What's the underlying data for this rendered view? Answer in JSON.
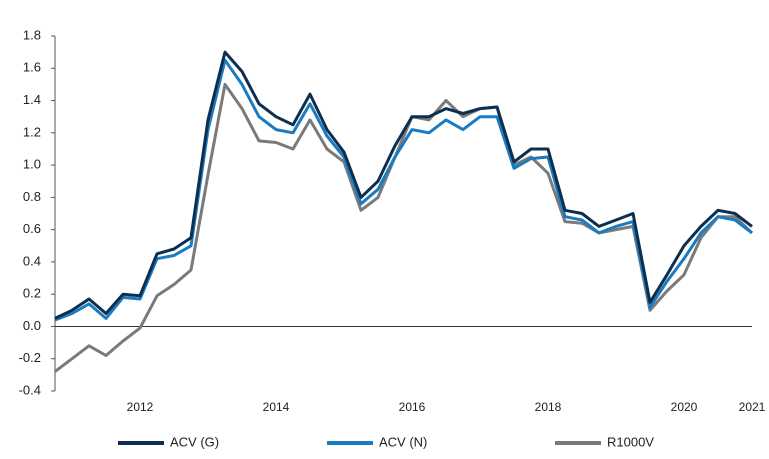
{
  "chart_data": {
    "type": "line",
    "x": [
      2010.75,
      2011,
      2011.25,
      2011.5,
      2011.75,
      2012,
      2012.25,
      2012.5,
      2012.75,
      2013,
      2013.25,
      2013.5,
      2013.75,
      2014,
      2014.25,
      2014.5,
      2014.75,
      2015,
      2015.25,
      2015.5,
      2015.75,
      2016,
      2016.25,
      2016.5,
      2016.75,
      2017,
      2017.25,
      2017.5,
      2017.75,
      2018,
      2018.25,
      2018.5,
      2018.75,
      2019,
      2019.25,
      2019.5,
      2019.75,
      2020,
      2020.25,
      2020.5,
      2020.75,
      2021
    ],
    "series": [
      {
        "name": "ACV (G)",
        "color": "#0d2f4f",
        "values": [
          0.05,
          0.1,
          0.17,
          0.08,
          0.2,
          0.19,
          0.45,
          0.48,
          0.55,
          1.28,
          1.7,
          1.58,
          1.38,
          1.3,
          1.25,
          1.44,
          1.22,
          1.08,
          0.8,
          0.9,
          1.12,
          1.3,
          1.3,
          1.35,
          1.32,
          1.35,
          1.36,
          1.02,
          1.1,
          1.1,
          0.72,
          0.7,
          0.62,
          0.66,
          0.7,
          0.15,
          0.32,
          0.5,
          0.62,
          0.72,
          0.7,
          0.62
        ]
      },
      {
        "name": "ACV (N)",
        "color": "#1a7bc0",
        "values": [
          0.04,
          0.08,
          0.14,
          0.05,
          0.18,
          0.17,
          0.42,
          0.44,
          0.5,
          1.22,
          1.65,
          1.5,
          1.3,
          1.22,
          1.2,
          1.38,
          1.18,
          1.05,
          0.76,
          0.85,
          1.05,
          1.22,
          1.2,
          1.28,
          1.22,
          1.3,
          1.3,
          0.98,
          1.04,
          1.05,
          0.68,
          0.66,
          0.58,
          0.62,
          0.65,
          0.12,
          0.28,
          0.42,
          0.58,
          0.68,
          0.66,
          0.58
        ]
      },
      {
        "name": "R1000V",
        "color": "#7a7a7a",
        "values": [
          -0.28,
          -0.2,
          -0.12,
          -0.18,
          -0.09,
          -0.01,
          0.19,
          0.26,
          0.35,
          0.94,
          1.5,
          1.35,
          1.15,
          1.14,
          1.1,
          1.28,
          1.1,
          1.02,
          0.72,
          0.8,
          1.05,
          1.3,
          1.28,
          1.4,
          1.3,
          1.35,
          1.36,
          1.0,
          1.05,
          0.95,
          0.65,
          0.64,
          0.58,
          0.6,
          0.62,
          0.1,
          0.22,
          0.32,
          0.55,
          0.68,
          0.68,
          0.58
        ]
      }
    ],
    "xlim": [
      2010.75,
      2021
    ],
    "xticks": [
      2012,
      2014,
      2016,
      2018,
      2020,
      2021
    ],
    "ylim": [
      -0.4,
      1.8
    ],
    "yticks": [
      -0.4,
      -0.2,
      {
        "value": 0,
        "label": "0.0"
      },
      0.2,
      0.4,
      0.6,
      0.8,
      {
        "value": 1,
        "label": "1.0"
      },
      1.2,
      1.4,
      1.6,
      1.8
    ],
    "legend": "bottom"
  }
}
